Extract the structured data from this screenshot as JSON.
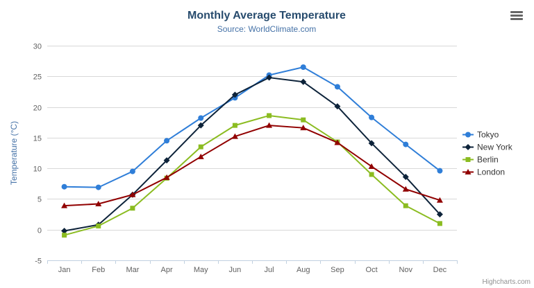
{
  "header": {
    "title": "Monthly Average Temperature",
    "subtitle": "Source: WorldClimate.com"
  },
  "toolbar": {
    "menu_icon": "hamburger-menu"
  },
  "credits": {
    "text": "Highcharts.com"
  },
  "chart_data": {
    "type": "line",
    "title": "Monthly Average Temperature",
    "subtitle": "Source: WorldClimate.com",
    "categories": [
      "Jan",
      "Feb",
      "Mar",
      "Apr",
      "May",
      "Jun",
      "Jul",
      "Aug",
      "Sep",
      "Oct",
      "Nov",
      "Dec"
    ],
    "series": [
      {
        "name": "Tokyo",
        "color": "#2f7ed8",
        "marker": "circle",
        "values": [
          7.0,
          6.9,
          9.5,
          14.5,
          18.2,
          21.5,
          25.2,
          26.5,
          23.3,
          18.3,
          13.9,
          9.6
        ]
      },
      {
        "name": "New York",
        "color": "#0d233a",
        "marker": "diamond",
        "values": [
          -0.2,
          0.8,
          5.7,
          11.3,
          17.0,
          22.0,
          24.8,
          24.1,
          20.1,
          14.1,
          8.6,
          2.5
        ]
      },
      {
        "name": "Berlin",
        "color": "#8bbc21",
        "marker": "square",
        "values": [
          -0.9,
          0.6,
          3.5,
          8.4,
          13.5,
          17.0,
          18.6,
          17.9,
          14.3,
          9.0,
          3.9,
          1.0
        ]
      },
      {
        "name": "London",
        "color": "#910000",
        "marker": "triangle",
        "values": [
          3.9,
          4.2,
          5.7,
          8.5,
          11.9,
          15.2,
          17.0,
          16.6,
          14.2,
          10.3,
          6.6,
          4.8
        ]
      }
    ],
    "xlabel": "",
    "ylabel": "Temperature (°C)",
    "ylim": [
      -5,
      30
    ],
    "ytick_interval": 5,
    "grid": true,
    "legend_position": "right",
    "colors": {
      "grid_line": "#d8d8d8",
      "axis_line": "#c0d0e0",
      "tick_label": "#606060",
      "legend_label": "#333333"
    }
  }
}
